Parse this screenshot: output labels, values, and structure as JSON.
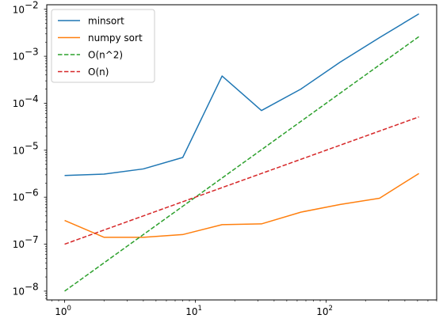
{
  "chart_data": {
    "type": "line",
    "xscale": "log",
    "yscale": "log",
    "xlim": [
      0.73,
      700
    ],
    "ylim": [
      6.5e-09,
      0.0125
    ],
    "grid": false,
    "legend_position": "top-left",
    "x": [
      1,
      2,
      4,
      8,
      16,
      32,
      64,
      128,
      256,
      512
    ],
    "x_ticks": [
      {
        "value": 1,
        "base": "10",
        "exp": "0"
      },
      {
        "value": 10,
        "base": "10",
        "exp": "1"
      },
      {
        "value": 100,
        "base": "10",
        "exp": "2"
      }
    ],
    "y_ticks": [
      {
        "value": 1e-08,
        "base": "10",
        "exp": "−8"
      },
      {
        "value": 1e-07,
        "base": "10",
        "exp": "−7"
      },
      {
        "value": 1e-06,
        "base": "10",
        "exp": "−6"
      },
      {
        "value": 1e-05,
        "base": "10",
        "exp": "−5"
      },
      {
        "value": 0.0001,
        "base": "10",
        "exp": "−4"
      },
      {
        "value": 0.001,
        "base": "10",
        "exp": "−3"
      },
      {
        "value": 0.01,
        "base": "10",
        "exp": "−2"
      }
    ],
    "series": [
      {
        "name": "minsort",
        "color": "#1f77b4",
        "dash": "solid",
        "values": [
          2.9e-06,
          3.1e-06,
          4e-06,
          7e-06,
          0.00038,
          7e-05,
          0.0002,
          0.00075,
          0.0025,
          0.008
        ]
      },
      {
        "name": "numpy sort",
        "color": "#ff7f0e",
        "dash": "solid",
        "values": [
          3.2e-07,
          1.4e-07,
          1.4e-07,
          1.6e-07,
          2.6e-07,
          2.7e-07,
          4.8e-07,
          7e-07,
          9.5e-07,
          3.2e-06
        ]
      },
      {
        "name": "O(n^2)",
        "color": "#2ca02c",
        "dash": "dashed",
        "values": [
          1e-08,
          4e-08,
          1.6e-07,
          6.4e-07,
          2.56e-06,
          1.024e-05,
          4.096e-05,
          0.00016384,
          0.00065536,
          0.00262144
        ]
      },
      {
        "name": "O(n)",
        "color": "#d62728",
        "dash": "dashed",
        "values": [
          1e-07,
          2e-07,
          4e-07,
          8e-07,
          1.6e-06,
          3.2e-06,
          6.4e-06,
          1.28e-05,
          2.56e-05,
          5.12e-05
        ]
      }
    ]
  }
}
